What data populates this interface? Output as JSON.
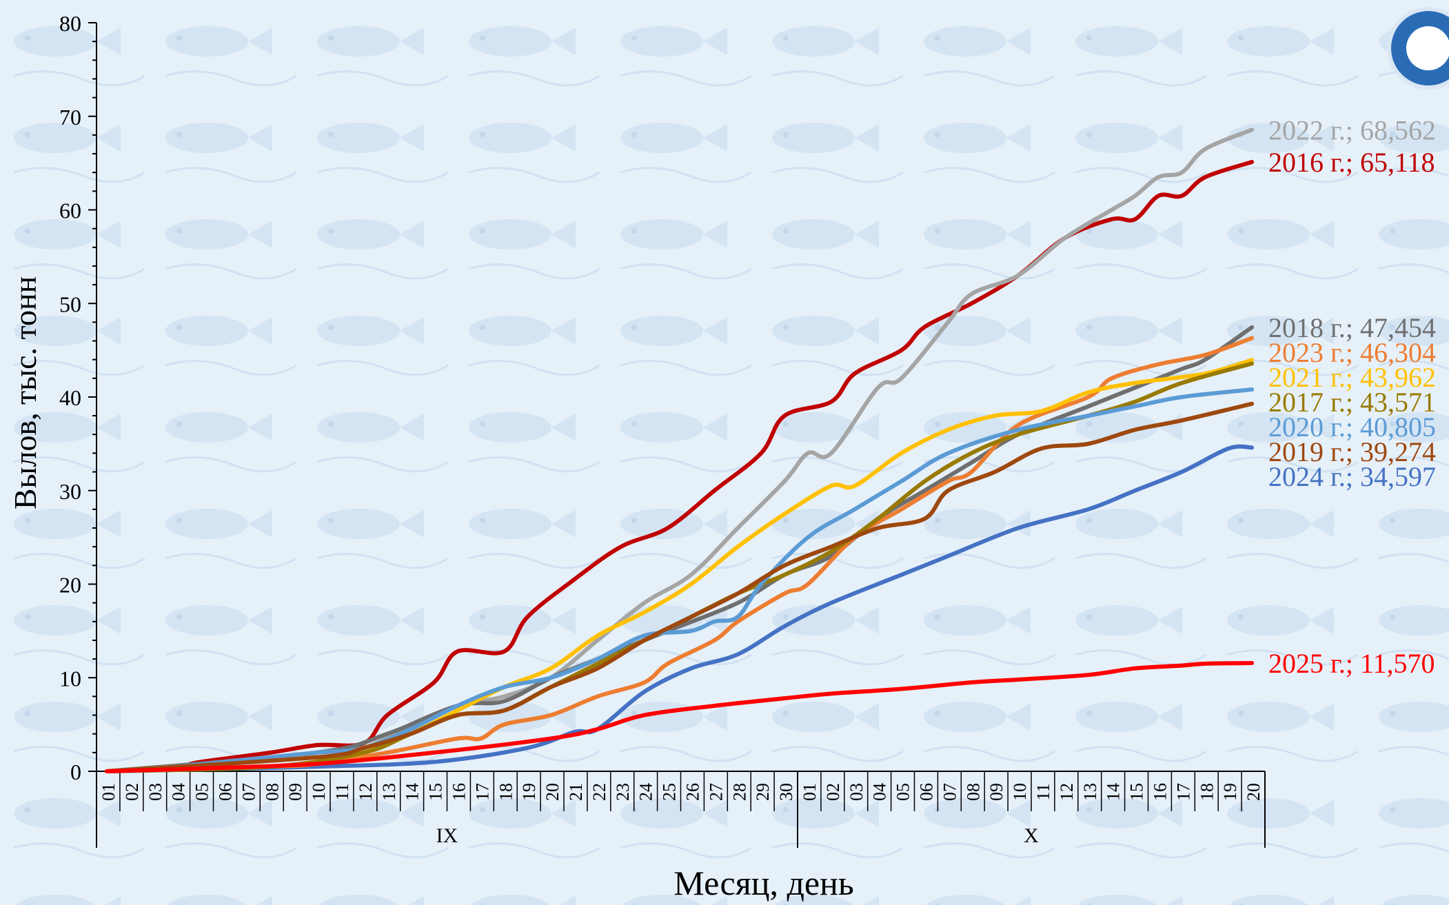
{
  "chart_data": {
    "type": "line",
    "title": "",
    "xlabel": "Месяц, день",
    "ylabel": "Вылов, тыс. тонн",
    "ylim": [
      0,
      80
    ],
    "yticks": [
      0,
      10,
      20,
      30,
      40,
      50,
      60,
      70,
      80
    ],
    "grid": false,
    "legend": "end-of-line labels",
    "months": [
      {
        "label": "IX",
        "days": [
          "01",
          "02",
          "03",
          "04",
          "05",
          "06",
          "07",
          "08",
          "09",
          "10",
          "11",
          "12",
          "13",
          "14",
          "15",
          "16",
          "17",
          "18",
          "19",
          "20",
          "21",
          "22",
          "23",
          "24",
          "25",
          "26",
          "27",
          "28",
          "29",
          "30"
        ]
      },
      {
        "label": "X",
        "days": [
          "01",
          "02",
          "03",
          "04",
          "05",
          "06",
          "07",
          "08",
          "09",
          "10",
          "11",
          "12",
          "13",
          "14",
          "15",
          "16",
          "17",
          "18",
          "19",
          "20"
        ]
      }
    ],
    "series": [
      {
        "name": "2024",
        "label": "2024 г.; 34,597",
        "color": "#4472c4",
        "points": [
          [
            1,
            0
          ],
          [
            5,
            0.2
          ],
          [
            10,
            0.5
          ],
          [
            15,
            1.0
          ],
          [
            19,
            2.5
          ],
          [
            21,
            4.2
          ],
          [
            22,
            4.5
          ],
          [
            24,
            8.5
          ],
          [
            26,
            11.0
          ],
          [
            28,
            12.5
          ],
          [
            30,
            15.5
          ],
          [
            32,
            18.0
          ],
          [
            35,
            21.0
          ],
          [
            37,
            23.0
          ],
          [
            40,
            26.0
          ],
          [
            43,
            28.0
          ],
          [
            45,
            30.0
          ],
          [
            47,
            32.0
          ],
          [
            49,
            34.5
          ],
          [
            50,
            34.597
          ]
        ]
      },
      {
        "name": "2016",
        "label": "2016 г.; 65,118",
        "color": "#c00000",
        "points": [
          [
            1,
            0
          ],
          [
            4,
            0.5
          ],
          [
            5,
            1.0
          ],
          [
            8,
            2.0
          ],
          [
            10,
            2.8
          ],
          [
            12,
            3.0
          ],
          [
            13,
            6.0
          ],
          [
            15,
            9.5
          ],
          [
            16,
            12.8
          ],
          [
            18,
            12.8
          ],
          [
            19,
            16.5
          ],
          [
            21,
            20.5
          ],
          [
            23,
            24.0
          ],
          [
            25,
            26.0
          ],
          [
            27,
            30.0
          ],
          [
            29,
            34.0
          ],
          [
            30,
            38.0
          ],
          [
            32,
            39.5
          ],
          [
            33,
            42.5
          ],
          [
            35,
            45.0
          ],
          [
            36,
            47.5
          ],
          [
            38,
            50.0
          ],
          [
            40,
            53.0
          ],
          [
            42,
            57.0
          ],
          [
            44,
            59.0
          ],
          [
            45,
            59.0
          ],
          [
            46,
            61.5
          ],
          [
            47,
            61.5
          ],
          [
            48,
            63.5
          ],
          [
            50,
            65.118
          ]
        ]
      },
      {
        "name": "2022",
        "label": "2022 г.; 68,562",
        "color": "#a5a5a5",
        "points": [
          [
            1,
            0
          ],
          [
            5,
            0.8
          ],
          [
            10,
            2.0
          ],
          [
            12,
            2.5
          ],
          [
            14,
            5.0
          ],
          [
            16,
            7.0
          ],
          [
            18,
            8.0
          ],
          [
            20,
            10.0
          ],
          [
            22,
            14.0
          ],
          [
            24,
            18.0
          ],
          [
            26,
            21.0
          ],
          [
            28,
            26.0
          ],
          [
            30,
            31.0
          ],
          [
            31,
            34.0
          ],
          [
            32,
            34.0
          ],
          [
            34,
            41.0
          ],
          [
            35,
            42.0
          ],
          [
            37,
            48.0
          ],
          [
            38,
            51.0
          ],
          [
            40,
            53.0
          ],
          [
            42,
            57.0
          ],
          [
            44,
            60.0
          ],
          [
            45,
            61.5
          ],
          [
            46,
            63.5
          ],
          [
            47,
            64.0
          ],
          [
            48,
            66.5
          ],
          [
            50,
            68.562
          ]
        ]
      },
      {
        "name": "2018",
        "label": "2018 г.; 47,454",
        "color": "#6f6f6f",
        "points": [
          [
            1,
            0
          ],
          [
            10,
            2.0
          ],
          [
            13,
            4.0
          ],
          [
            16,
            7.0
          ],
          [
            18,
            7.5
          ],
          [
            20,
            10.0
          ],
          [
            22,
            12.0
          ],
          [
            25,
            15.0
          ],
          [
            28,
            18.0
          ],
          [
            30,
            21.0
          ],
          [
            32,
            23.0
          ],
          [
            34,
            27.0
          ],
          [
            36,
            30.0
          ],
          [
            38,
            33.0
          ],
          [
            40,
            36.0
          ],
          [
            43,
            39.0
          ],
          [
            45,
            41.0
          ],
          [
            47,
            43.0
          ],
          [
            48,
            44.0
          ],
          [
            50,
            47.454
          ]
        ]
      },
      {
        "name": "2023",
        "label": "2023 г.; 46,304",
        "color": "#ed7d31",
        "points": [
          [
            1,
            0
          ],
          [
            8,
            0.5
          ],
          [
            10,
            0.8
          ],
          [
            13,
            2.0
          ],
          [
            16,
            3.5
          ],
          [
            17,
            3.5
          ],
          [
            18,
            5.0
          ],
          [
            20,
            6.0
          ],
          [
            22,
            8.0
          ],
          [
            24,
            9.5
          ],
          [
            25,
            11.5
          ],
          [
            27,
            14.0
          ],
          [
            28,
            16.0
          ],
          [
            30,
            19.0
          ],
          [
            31,
            20.0
          ],
          [
            33,
            25.0
          ],
          [
            35,
            28.0
          ],
          [
            37,
            31.0
          ],
          [
            38,
            32.0
          ],
          [
            40,
            37.0
          ],
          [
            43,
            40.0
          ],
          [
            44,
            42.0
          ],
          [
            46,
            43.5
          ],
          [
            48,
            44.5
          ],
          [
            50,
            46.304
          ]
        ]
      },
      {
        "name": "2021",
        "label": "2021 г.; 43,962",
        "color": "#ffc000",
        "points": [
          [
            1,
            0
          ],
          [
            10,
            1.5
          ],
          [
            12,
            2.0
          ],
          [
            14,
            4.0
          ],
          [
            16,
            6.5
          ],
          [
            18,
            9.0
          ],
          [
            20,
            11.0
          ],
          [
            22,
            14.5
          ],
          [
            24,
            17.0
          ],
          [
            26,
            20.0
          ],
          [
            28,
            24.0
          ],
          [
            30,
            27.5
          ],
          [
            32,
            30.5
          ],
          [
            33,
            30.5
          ],
          [
            35,
            34.0
          ],
          [
            37,
            36.5
          ],
          [
            39,
            38.0
          ],
          [
            41,
            38.5
          ],
          [
            43,
            40.5
          ],
          [
            45,
            41.5
          ],
          [
            48,
            42.5
          ],
          [
            50,
            43.962
          ]
        ]
      },
      {
        "name": "2017",
        "label": "2017 г.; 43,571",
        "color": "#997a00",
        "points": [
          [
            1,
            0
          ],
          [
            8,
            0.5
          ],
          [
            12,
            2.0
          ],
          [
            14,
            4.0
          ],
          [
            16,
            6.0
          ],
          [
            18,
            6.5
          ],
          [
            20,
            9.0
          ],
          [
            22,
            11.5
          ],
          [
            24,
            14.0
          ],
          [
            26,
            16.5
          ],
          [
            28,
            19.0
          ],
          [
            30,
            21.0
          ],
          [
            32,
            23.5
          ],
          [
            34,
            27.0
          ],
          [
            36,
            31.0
          ],
          [
            38,
            34.0
          ],
          [
            40,
            36.0
          ],
          [
            43,
            38.0
          ],
          [
            45,
            39.5
          ],
          [
            47,
            41.5
          ],
          [
            50,
            43.571
          ]
        ]
      },
      {
        "name": "2020",
        "label": "2020 г.; 40,805",
        "color": "#5b9bd5",
        "points": [
          [
            1,
            0
          ],
          [
            4,
            0.5
          ],
          [
            6,
            1.0
          ],
          [
            8,
            1.5
          ],
          [
            10,
            2.0
          ],
          [
            12,
            2.5
          ],
          [
            14,
            4.5
          ],
          [
            16,
            7.0
          ],
          [
            18,
            9.0
          ],
          [
            20,
            10.0
          ],
          [
            22,
            12.0
          ],
          [
            24,
            14.5
          ],
          [
            26,
            15.0
          ],
          [
            27,
            16.0
          ],
          [
            28,
            16.5
          ],
          [
            29,
            20.0
          ],
          [
            31,
            25.0
          ],
          [
            33,
            28.0
          ],
          [
            35,
            31.0
          ],
          [
            37,
            34.0
          ],
          [
            40,
            36.5
          ],
          [
            43,
            38.0
          ],
          [
            45,
            39.0
          ],
          [
            47,
            40.0
          ],
          [
            50,
            40.805
          ]
        ]
      },
      {
        "name": "2019",
        "label": "2019 г.; 39,274",
        "color": "#9e480e",
        "points": [
          [
            1,
            0
          ],
          [
            10,
            1.5
          ],
          [
            12,
            2.5
          ],
          [
            14,
            4.0
          ],
          [
            16,
            6.0
          ],
          [
            18,
            6.5
          ],
          [
            20,
            9.0
          ],
          [
            22,
            11.0
          ],
          [
            24,
            14.0
          ],
          [
            26,
            16.5
          ],
          [
            28,
            19.0
          ],
          [
            30,
            22.0
          ],
          [
            32,
            24.0
          ],
          [
            34,
            26.0
          ],
          [
            36,
            27.0
          ],
          [
            37,
            30.0
          ],
          [
            39,
            32.0
          ],
          [
            41,
            34.5
          ],
          [
            43,
            35.0
          ],
          [
            45,
            36.5
          ],
          [
            47,
            37.5
          ],
          [
            50,
            39.274
          ]
        ]
      },
      {
        "name": "2025",
        "label": "2025 г.; 11,570",
        "color": "#ff0000",
        "points": [
          [
            1,
            0
          ],
          [
            5,
            0.3
          ],
          [
            10,
            0.8
          ],
          [
            15,
            2.0
          ],
          [
            20,
            3.5
          ],
          [
            22,
            4.5
          ],
          [
            24,
            6.0
          ],
          [
            27,
            7.0
          ],
          [
            30,
            7.8
          ],
          [
            32,
            8.3
          ],
          [
            35,
            8.8
          ],
          [
            38,
            9.5
          ],
          [
            40,
            9.8
          ],
          [
            43,
            10.3
          ],
          [
            45,
            11.0
          ],
          [
            47,
            11.3
          ],
          [
            48,
            11.5
          ],
          [
            50,
            11.57
          ]
        ]
      }
    ]
  }
}
